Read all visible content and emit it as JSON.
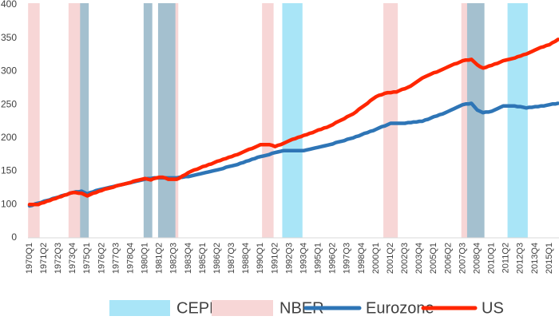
{
  "chart_data": {
    "type": "line",
    "categories": [
      "1970Q1",
      null,
      null,
      null,
      null,
      "1971Q2",
      null,
      null,
      null,
      null,
      "1972Q3",
      null,
      null,
      null,
      null,
      "1973Q4",
      null,
      null,
      null,
      null,
      "1975Q1",
      null,
      null,
      null,
      null,
      "1976Q2",
      null,
      null,
      null,
      null,
      "1977Q3",
      null,
      null,
      null,
      null,
      "1978Q4",
      null,
      null,
      null,
      null,
      "1980Q1",
      null,
      null,
      null,
      null,
      "1981Q2",
      null,
      null,
      null,
      null,
      "1982Q3",
      null,
      null,
      null,
      null,
      "1983Q4",
      null,
      null,
      null,
      null,
      "1985Q1",
      null,
      null,
      null,
      null,
      "1986Q2",
      null,
      null,
      null,
      null,
      "1987Q3",
      null,
      null,
      null,
      null,
      "1988Q4",
      null,
      null,
      null,
      null,
      "1990Q1",
      null,
      null,
      null,
      null,
      "1991Q2",
      null,
      null,
      null,
      null,
      "1992Q3",
      null,
      null,
      null,
      null,
      "1993Q4",
      null,
      null,
      null,
      null,
      "1995Q1",
      null,
      null,
      null,
      null,
      "1996Q2",
      null,
      null,
      null,
      null,
      "1997Q3",
      null,
      null,
      null,
      null,
      "1998Q4",
      null,
      null,
      null,
      null,
      "2000Q1",
      null,
      null,
      null,
      null,
      "2001Q2",
      null,
      null,
      null,
      null,
      "2002Q3",
      null,
      null,
      null,
      null,
      "2003Q4",
      null,
      null,
      null,
      null,
      "2005Q1",
      null,
      null,
      null,
      null,
      "2006Q2",
      null,
      null,
      null,
      null,
      "2007Q3",
      null,
      null,
      null,
      null,
      "2008Q4",
      null,
      null,
      null,
      null,
      "2010Q1",
      null,
      null,
      null,
      null,
      "2011Q2",
      null,
      null,
      null,
      null,
      "2012Q3",
      null,
      null,
      null,
      null,
      "2013Q4",
      null,
      null,
      null,
      null,
      "2015Q1",
      null,
      null,
      null
    ],
    "series": [
      {
        "name": "Eurozone",
        "color": "#2e75b6",
        "values": [
          98,
          99,
          101,
          102,
          103,
          105,
          106,
          107,
          109,
          110,
          111,
          113,
          114,
          115,
          117,
          118,
          119,
          119,
          120,
          118,
          116,
          118,
          119,
          121,
          122,
          123,
          124,
          125,
          126,
          127,
          128,
          129,
          130,
          131,
          132,
          133,
          134,
          135,
          136,
          137,
          138,
          139,
          139,
          140,
          140,
          140,
          140,
          140,
          140,
          140,
          140,
          140,
          141,
          141,
          142,
          142,
          143,
          144,
          145,
          146,
          147,
          148,
          149,
          150,
          151,
          152,
          153,
          154,
          156,
          157,
          158,
          159,
          160,
          162,
          163,
          165,
          166,
          168,
          169,
          171,
          172,
          173,
          174,
          175,
          177,
          178,
          179,
          180,
          181,
          181,
          181,
          181,
          181,
          181,
          181,
          181,
          182,
          183,
          184,
          185,
          186,
          187,
          188,
          189,
          190,
          191,
          193,
          194,
          195,
          196,
          198,
          199,
          200,
          202,
          203,
          205,
          207,
          208,
          210,
          211,
          213,
          215,
          217,
          218,
          220,
          222,
          222,
          222,
          222,
          222,
          222,
          223,
          223,
          224,
          224,
          225,
          225,
          227,
          228,
          230,
          232,
          233,
          235,
          236,
          238,
          240,
          242,
          244,
          246,
          248,
          250,
          251,
          251,
          252,
          247,
          242,
          240,
          238,
          239,
          239,
          240,
          242,
          244,
          246,
          248,
          248,
          248,
          248,
          248,
          247,
          247,
          246,
          245,
          246,
          246,
          247,
          247,
          248,
          248,
          249,
          250,
          251,
          251,
          252
        ]
      },
      {
        "name": "US",
        "color": "#ff2600",
        "values": [
          100,
          100,
          100,
          100,
          102,
          103,
          105,
          106,
          108,
          109,
          111,
          112,
          114,
          115,
          117,
          118,
          118,
          117,
          117,
          115,
          113,
          115,
          117,
          118,
          120,
          121,
          123,
          124,
          125,
          126,
          128,
          129,
          130,
          131,
          132,
          133,
          135,
          136,
          137,
          138,
          139,
          138,
          137,
          139,
          140,
          141,
          141,
          140,
          138,
          138,
          138,
          138,
          140,
          143,
          145,
          148,
          150,
          152,
          153,
          155,
          157,
          158,
          160,
          161,
          163,
          165,
          166,
          168,
          169,
          171,
          172,
          174,
          175,
          177,
          179,
          181,
          183,
          184,
          186,
          188,
          190,
          190,
          190,
          190,
          189,
          187,
          189,
          190,
          192,
          194,
          196,
          198,
          199,
          201,
          202,
          204,
          205,
          207,
          208,
          210,
          212,
          213,
          215,
          216,
          218,
          220,
          223,
          225,
          227,
          229,
          232,
          234,
          236,
          239,
          243,
          246,
          249,
          252,
          256,
          259,
          262,
          264,
          265,
          267,
          268,
          268,
          269,
          269,
          271,
          273,
          274,
          276,
          278,
          281,
          284,
          287,
          290,
          292,
          294,
          296,
          298,
          299,
          301,
          303,
          305,
          307,
          309,
          311,
          312,
          314,
          316,
          317,
          317,
          318,
          314,
          310,
          307,
          305,
          306,
          308,
          309,
          311,
          312,
          314,
          316,
          317,
          318,
          319,
          320,
          322,
          323,
          325,
          326,
          328,
          330,
          332,
          334,
          336,
          337,
          339,
          340,
          343,
          345,
          348
        ]
      }
    ],
    "bands": [
      {
        "name": "CEPR",
        "color": "#a9e5f7",
        "periods": [
          [
            "1974Q3",
            "1975Q1"
          ],
          [
            "1980Q1",
            "1980Q3"
          ],
          [
            "1981Q2",
            "1982Q3"
          ],
          [
            "1992Q1",
            "1993Q3"
          ],
          [
            "2008Q1",
            "2009Q2"
          ],
          [
            "2011Q3",
            "2013Q1"
          ]
        ]
      },
      {
        "name": "NBER",
        "color": "#f7d6d6",
        "periods": [
          [
            "1970Q1",
            "1970Q4"
          ],
          [
            "1973Q3",
            "1975Q1"
          ],
          [
            "1980Q1",
            "1980Q3"
          ],
          [
            "1981Q2",
            "1982Q4"
          ],
          [
            "1990Q2",
            "1991Q1"
          ],
          [
            "2000Q4",
            "2001Q4"
          ],
          [
            "2007Q3",
            "2009Q2"
          ]
        ]
      }
    ],
    "ylim": [
      50,
      400
    ],
    "yticks": [
      {
        "value": 50,
        "label": "0"
      },
      100,
      150,
      200,
      250,
      300,
      350,
      400
    ],
    "grid": false
  }
}
